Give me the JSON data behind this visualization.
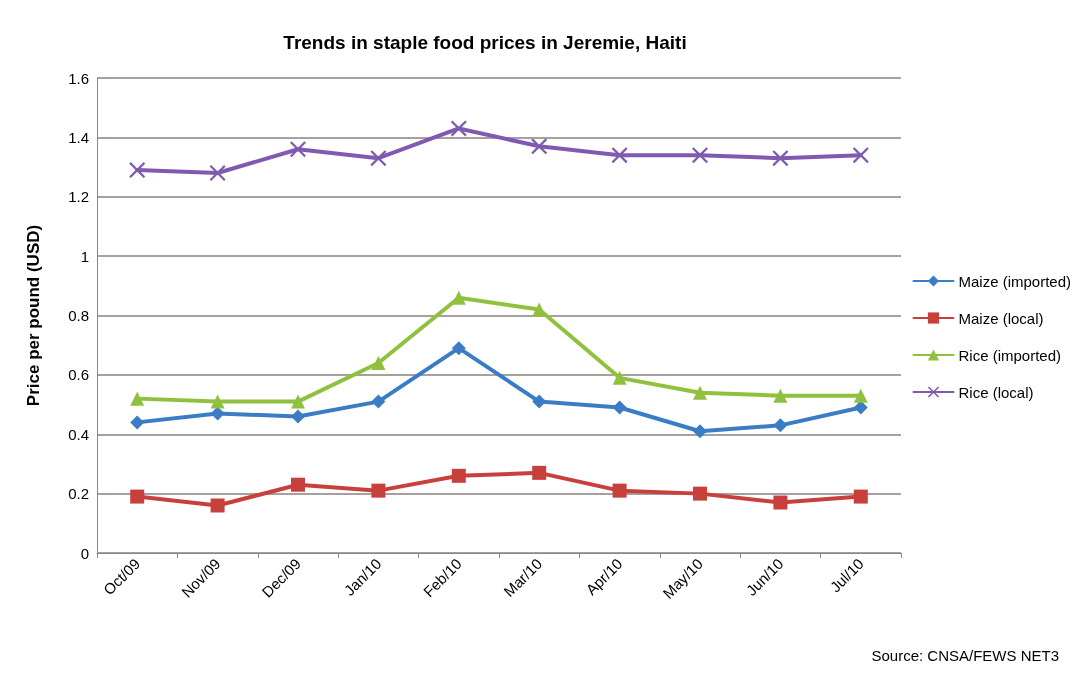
{
  "chart_data": {
    "type": "line",
    "title": "Trends in staple food prices in Jeremie, Haiti",
    "ylabel": "Price per pound (USD)",
    "categories": [
      "Oct/09",
      "Nov/09",
      "Dec/09",
      "Jan/10",
      "Feb/10",
      "Mar/10",
      "Apr/10",
      "May/10",
      "Jun/10",
      "Jul/10"
    ],
    "series": [
      {
        "name": "Maize (imported)",
        "color": "#3b7dc4",
        "marker": "diamond",
        "values": [
          0.44,
          0.47,
          0.46,
          0.51,
          0.69,
          0.51,
          0.49,
          0.41,
          0.43,
          0.49
        ]
      },
      {
        "name": "Maize (local)",
        "color": "#c8403c",
        "marker": "square",
        "values": [
          0.19,
          0.16,
          0.23,
          0.21,
          0.26,
          0.27,
          0.21,
          0.2,
          0.17,
          0.19
        ]
      },
      {
        "name": "Rice (imported)",
        "color": "#8fc13f",
        "marker": "triangle",
        "values": [
          0.52,
          0.51,
          0.51,
          0.64,
          0.86,
          0.82,
          0.59,
          0.54,
          0.53,
          0.53
        ]
      },
      {
        "name": "Rice (local)",
        "color": "#7f5ab0",
        "marker": "cross",
        "values": [
          1.29,
          1.28,
          1.36,
          1.33,
          1.43,
          1.37,
          1.34,
          1.34,
          1.33,
          1.34
        ]
      }
    ],
    "ylim": [
      0,
      1.6
    ],
    "yticks": [
      0,
      0.2,
      0.4,
      0.6,
      0.8,
      1,
      1.2,
      1.4,
      1.6
    ],
    "grid": "y",
    "legend": "right",
    "line_style": "solid",
    "annotations": [
      "Source: CNSA/FEWS NET3"
    ]
  }
}
